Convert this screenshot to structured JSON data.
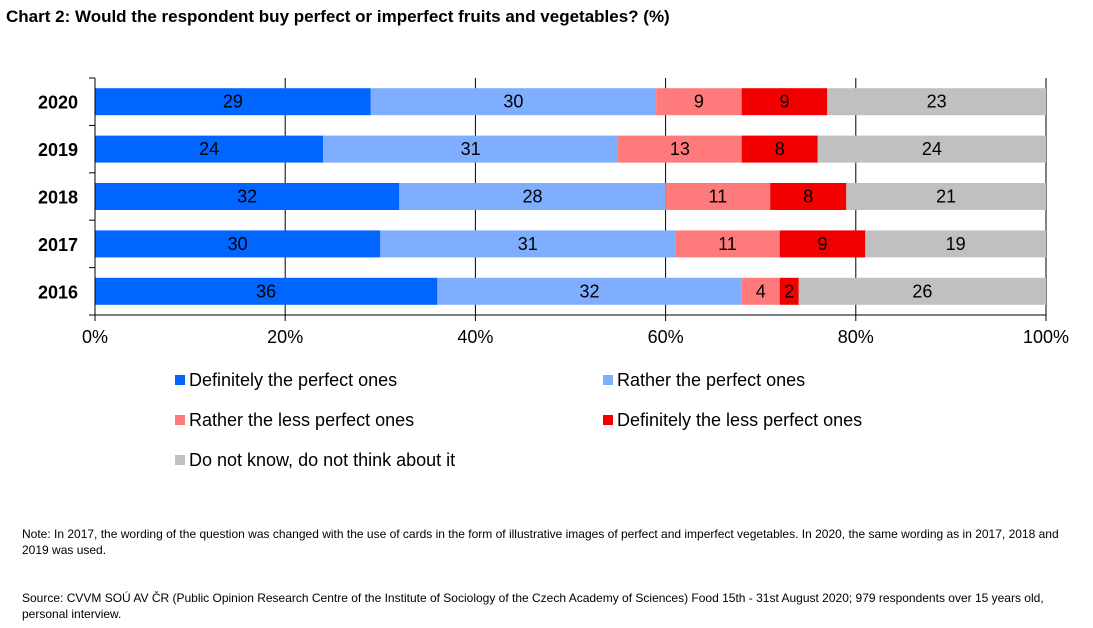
{
  "chart_data": {
    "type": "bar",
    "orientation": "horizontal",
    "stacked": true,
    "title": "Chart 2: Would the respondent buy perfect or imperfect fruits and vegetables? (%)",
    "categories": [
      "2020",
      "2019",
      "2018",
      "2017",
      "2016"
    ],
    "series": [
      {
        "name": "Definitely the perfect ones",
        "color": "#0066FF",
        "values": [
          29,
          24,
          32,
          30,
          36
        ]
      },
      {
        "name": "Rather the perfect ones",
        "color": "#7FAEFF",
        "values": [
          30,
          31,
          28,
          31,
          32
        ]
      },
      {
        "name": "Rather the less perfect ones",
        "color": "#FF7B7B",
        "values": [
          9,
          13,
          11,
          11,
          4
        ]
      },
      {
        "name": "Definitely the less perfect ones",
        "color": "#F20000",
        "values": [
          9,
          8,
          8,
          9,
          2
        ]
      },
      {
        "name": "Do not know, do not think about it",
        "color": "#C0C0C0",
        "values": [
          23,
          24,
          21,
          19,
          26
        ]
      }
    ],
    "xlim": [
      0,
      100
    ],
    "xticks": [
      "0%",
      "20%",
      "40%",
      "60%",
      "80%",
      "100%"
    ],
    "grid": true,
    "legend_position": "bottom"
  },
  "notes": {
    "note": "Note: In 2017, the wording of the question was changed with the use of cards in the form of illustrative images of perfect and imperfect vegetables. In 2020, the same wording as in 2017, 2018 and 2019 was used.",
    "source": "Source: CVVM SOÚ AV ČR (Public Opinion Research Centre of the Institute of Sociology of the Czech Academy of Sciences) Food 15th - 31st August 2020; 979 respondents over 15 years old, personal interview."
  }
}
